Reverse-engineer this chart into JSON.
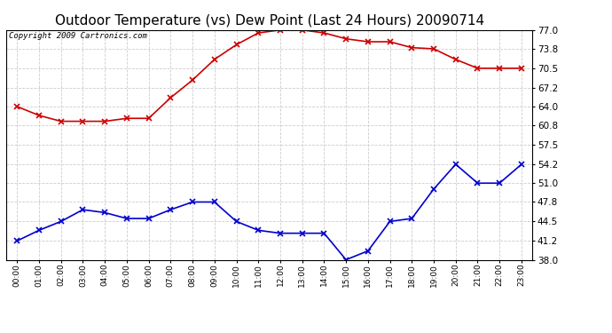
{
  "title": "Outdoor Temperature (vs) Dew Point (Last 24 Hours) 20090714",
  "copyright": "Copyright 2009 Cartronics.com",
  "hours": [
    "00:00",
    "01:00",
    "02:00",
    "03:00",
    "04:00",
    "05:00",
    "06:00",
    "07:00",
    "08:00",
    "09:00",
    "10:00",
    "11:00",
    "12:00",
    "13:00",
    "14:00",
    "15:00",
    "16:00",
    "17:00",
    "18:00",
    "19:00",
    "20:00",
    "21:00",
    "22:00",
    "23:00"
  ],
  "temp": [
    64.0,
    62.5,
    61.5,
    61.5,
    61.5,
    62.0,
    62.0,
    65.5,
    68.5,
    72.0,
    74.5,
    76.5,
    77.0,
    77.0,
    76.5,
    75.5,
    75.0,
    75.0,
    74.0,
    73.8,
    72.0,
    70.5,
    70.5,
    70.5
  ],
  "dew": [
    41.2,
    43.0,
    44.5,
    46.5,
    46.0,
    45.0,
    45.0,
    46.5,
    47.8,
    47.8,
    44.5,
    43.0,
    42.5,
    42.5,
    42.5,
    38.0,
    39.5,
    44.5,
    45.0,
    50.0,
    54.2,
    51.0,
    51.0,
    54.2
  ],
  "temp_color": "#cc0000",
  "dew_color": "#0000cc",
  "bg_color": "#ffffff",
  "plot_bg_color": "#ffffff",
  "grid_color": "#cccccc",
  "title_fontsize": 11,
  "copyright_fontsize": 6.5,
  "ylim": [
    38.0,
    77.0
  ],
  "yticks": [
    38.0,
    41.2,
    44.5,
    47.8,
    51.0,
    54.2,
    57.5,
    60.8,
    64.0,
    67.2,
    70.5,
    73.8,
    77.0
  ],
  "tick_fontsize": 7.5,
  "xtick_fontsize": 6.5
}
